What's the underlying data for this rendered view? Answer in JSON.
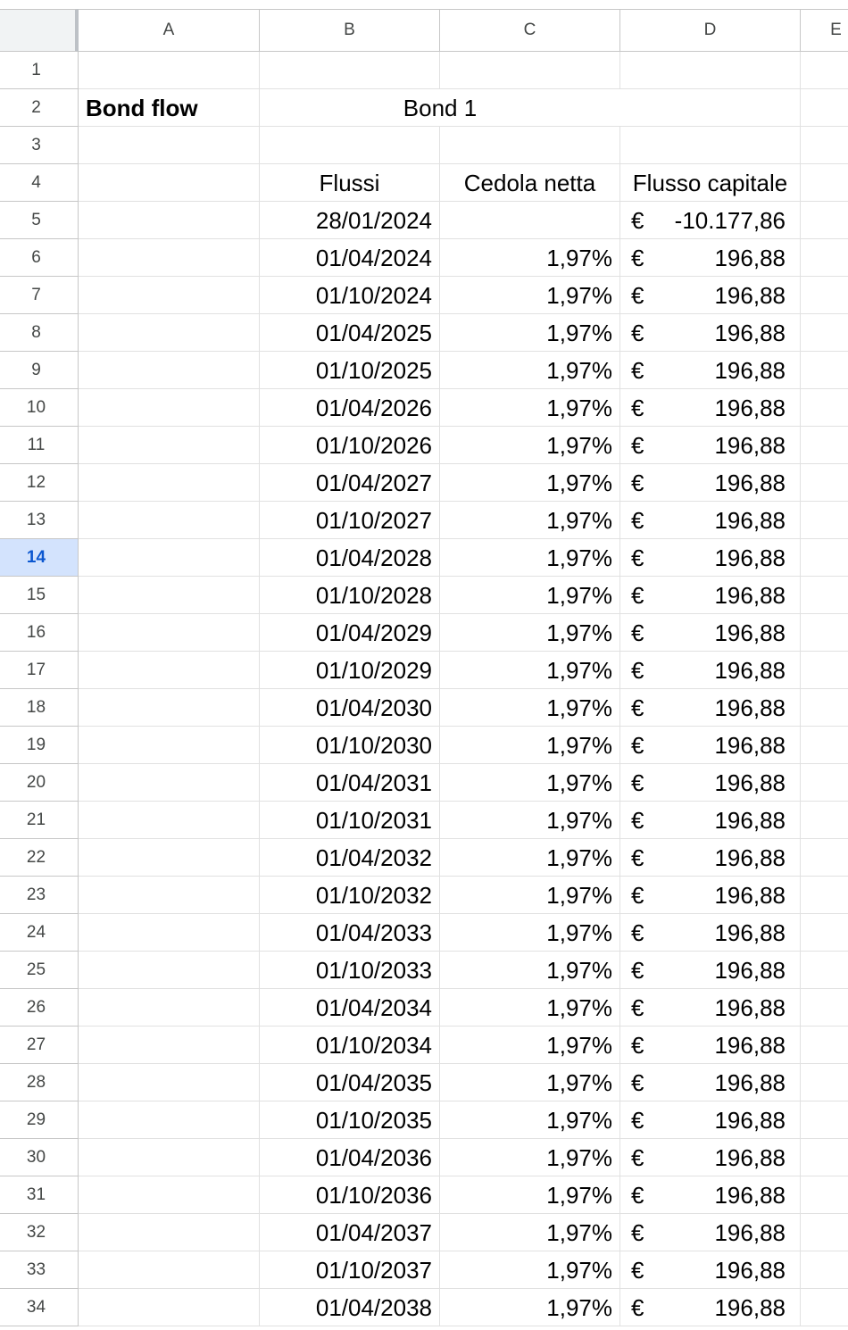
{
  "columns": [
    "A",
    "B",
    "C",
    "D",
    "E"
  ],
  "title": "Bond flow",
  "bond_name": "Bond 1",
  "headers": {
    "flussi": "Flussi",
    "cedola": "Cedola netta",
    "capitale": "Flusso capitale"
  },
  "currency": "€",
  "active_row": "14",
  "rows": [
    {
      "n": "1"
    },
    {
      "n": "2"
    },
    {
      "n": "3"
    },
    {
      "n": "4"
    },
    {
      "n": "5",
      "date": "28/01/2024",
      "coupon": "",
      "amount": "-10.177,86"
    },
    {
      "n": "6",
      "date": "01/04/2024",
      "coupon": "1,97%",
      "amount": "196,88"
    },
    {
      "n": "7",
      "date": "01/10/2024",
      "coupon": "1,97%",
      "amount": "196,88"
    },
    {
      "n": "8",
      "date": "01/04/2025",
      "coupon": "1,97%",
      "amount": "196,88"
    },
    {
      "n": "9",
      "date": "01/10/2025",
      "coupon": "1,97%",
      "amount": "196,88"
    },
    {
      "n": "10",
      "date": "01/04/2026",
      "coupon": "1,97%",
      "amount": "196,88"
    },
    {
      "n": "11",
      "date": "01/10/2026",
      "coupon": "1,97%",
      "amount": "196,88"
    },
    {
      "n": "12",
      "date": "01/04/2027",
      "coupon": "1,97%",
      "amount": "196,88"
    },
    {
      "n": "13",
      "date": "01/10/2027",
      "coupon": "1,97%",
      "amount": "196,88"
    },
    {
      "n": "14",
      "date": "01/04/2028",
      "coupon": "1,97%",
      "amount": "196,88"
    },
    {
      "n": "15",
      "date": "01/10/2028",
      "coupon": "1,97%",
      "amount": "196,88"
    },
    {
      "n": "16",
      "date": "01/04/2029",
      "coupon": "1,97%",
      "amount": "196,88"
    },
    {
      "n": "17",
      "date": "01/10/2029",
      "coupon": "1,97%",
      "amount": "196,88"
    },
    {
      "n": "18",
      "date": "01/04/2030",
      "coupon": "1,97%",
      "amount": "196,88"
    },
    {
      "n": "19",
      "date": "01/10/2030",
      "coupon": "1,97%",
      "amount": "196,88"
    },
    {
      "n": "20",
      "date": "01/04/2031",
      "coupon": "1,97%",
      "amount": "196,88"
    },
    {
      "n": "21",
      "date": "01/10/2031",
      "coupon": "1,97%",
      "amount": "196,88"
    },
    {
      "n": "22",
      "date": "01/04/2032",
      "coupon": "1,97%",
      "amount": "196,88"
    },
    {
      "n": "23",
      "date": "01/10/2032",
      "coupon": "1,97%",
      "amount": "196,88"
    },
    {
      "n": "24",
      "date": "01/04/2033",
      "coupon": "1,97%",
      "amount": "196,88"
    },
    {
      "n": "25",
      "date": "01/10/2033",
      "coupon": "1,97%",
      "amount": "196,88"
    },
    {
      "n": "26",
      "date": "01/04/2034",
      "coupon": "1,97%",
      "amount": "196,88"
    },
    {
      "n": "27",
      "date": "01/10/2034",
      "coupon": "1,97%",
      "amount": "196,88"
    },
    {
      "n": "28",
      "date": "01/04/2035",
      "coupon": "1,97%",
      "amount": "196,88"
    },
    {
      "n": "29",
      "date": "01/10/2035",
      "coupon": "1,97%",
      "amount": "196,88"
    },
    {
      "n": "30",
      "date": "01/04/2036",
      "coupon": "1,97%",
      "amount": "196,88"
    },
    {
      "n": "31",
      "date": "01/10/2036",
      "coupon": "1,97%",
      "amount": "196,88"
    },
    {
      "n": "32",
      "date": "01/04/2037",
      "coupon": "1,97%",
      "amount": "196,88"
    },
    {
      "n": "33",
      "date": "01/10/2037",
      "coupon": "1,97%",
      "amount": "196,88"
    },
    {
      "n": "34",
      "date": "01/04/2038",
      "coupon": "1,97%",
      "amount": "196,88"
    }
  ],
  "colors": {
    "active_row_bg": "#d3e3fd",
    "active_row_text": "#0b57d0",
    "grid": "#e1e1e1",
    "header_border": "#c7c7c7"
  }
}
